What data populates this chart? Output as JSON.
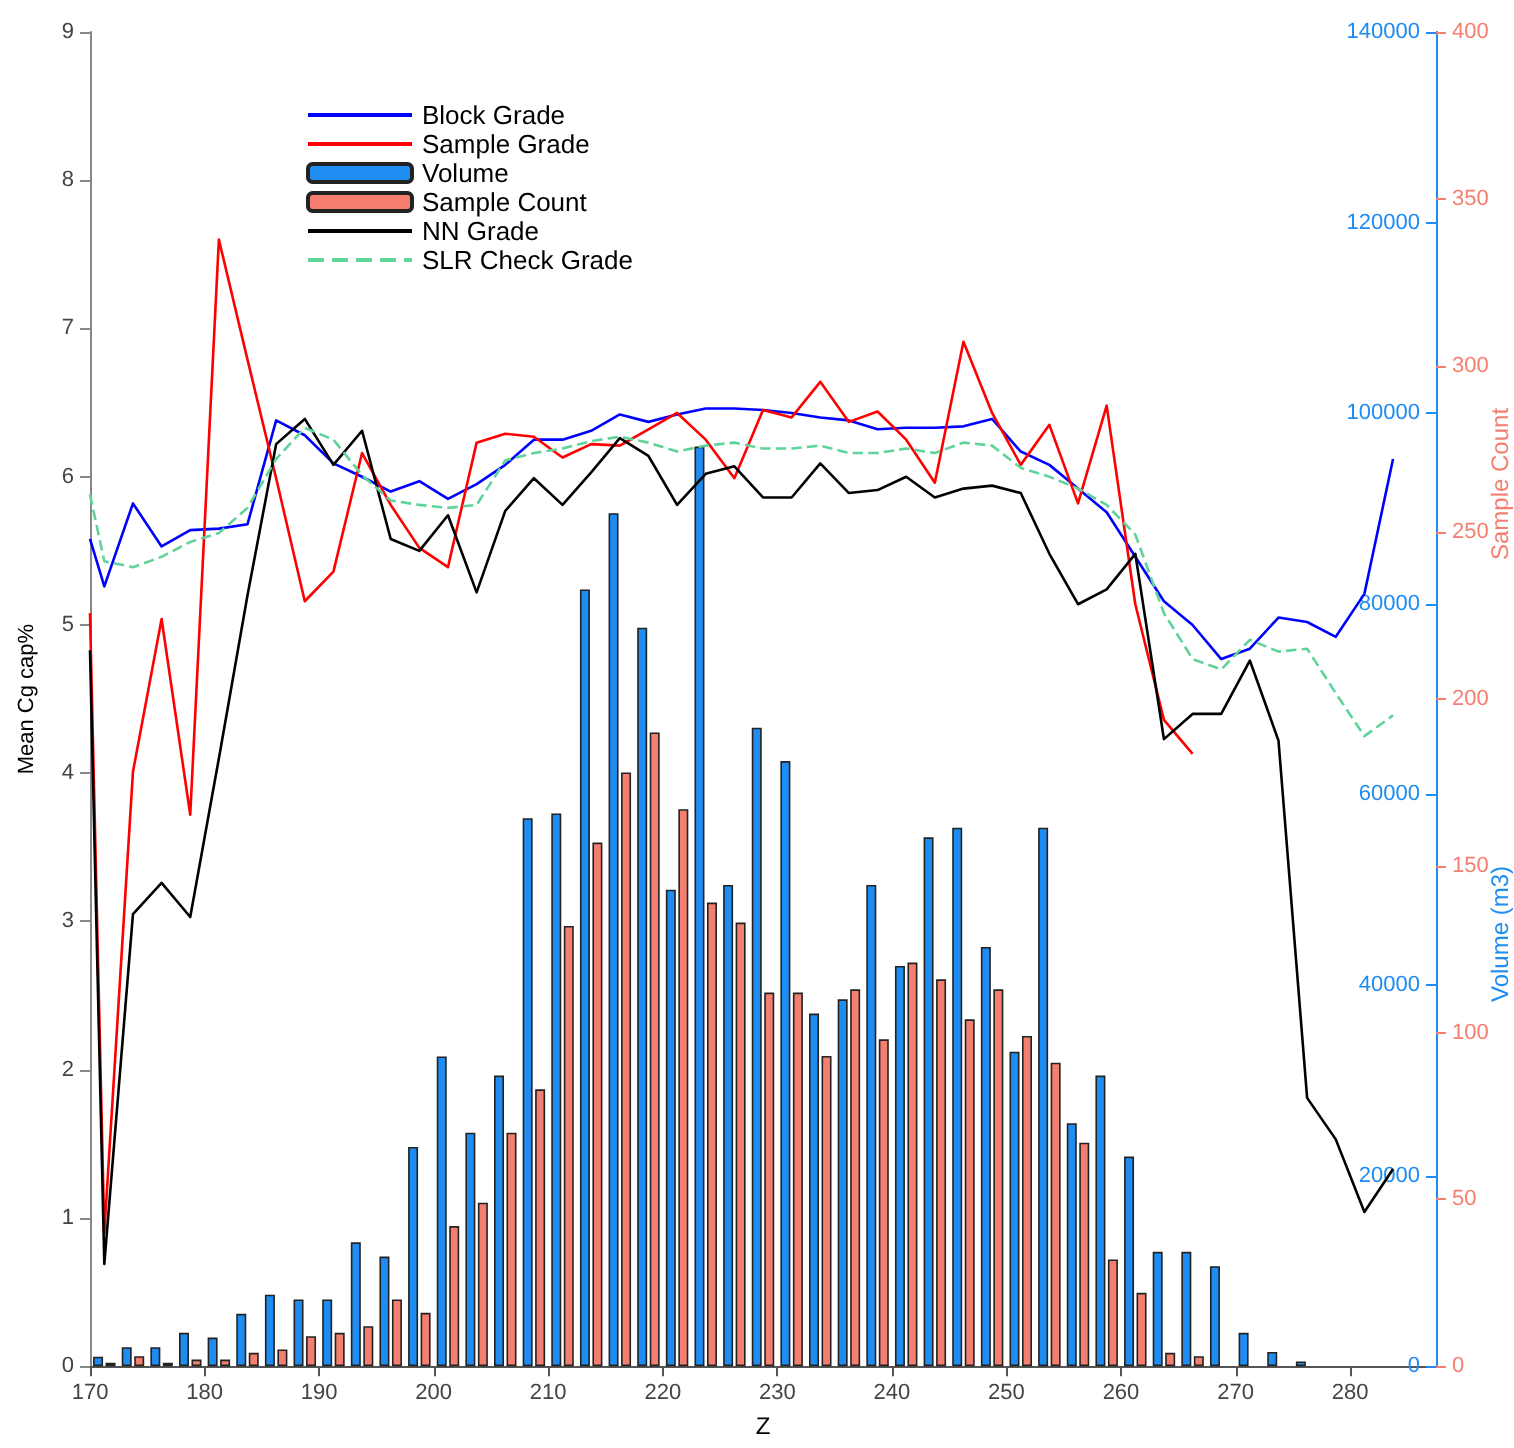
{
  "chart_data": {
    "type": "bar",
    "xlabel": "Z",
    "ylabel": "Mean Cg cap%",
    "y2label": "Sample Count",
    "y3label": "Volume (m3)",
    "x": [
      171.25,
      173.75,
      176.25,
      178.75,
      181.25,
      183.75,
      186.25,
      188.75,
      191.25,
      193.75,
      196.25,
      198.75,
      201.25,
      203.75,
      206.25,
      208.75,
      211.25,
      213.75,
      216.25,
      218.75,
      221.25,
      223.75,
      226.25,
      228.75,
      231.25,
      233.75,
      236.25,
      238.75,
      241.25,
      243.75,
      246.25,
      248.75,
      251.25,
      253.75,
      256.25,
      258.75,
      261.25,
      263.75,
      266.25,
      268.75,
      271.25,
      273.75,
      276.25,
      278.75,
      281.25,
      283.75
    ],
    "series": [
      {
        "name": "Block Grade",
        "type": "line",
        "color": "#0000ff",
        "x": [
          170,
          171.25,
          173.75,
          176.25,
          178.75,
          181.25,
          183.75,
          186.25,
          188.75,
          191.25,
          193.75,
          196.25,
          198.75,
          201.25,
          203.75,
          206.25,
          208.75,
          211.25,
          213.75,
          216.25,
          218.75,
          221.25,
          223.75,
          226.25,
          228.75,
          231.25,
          233.75,
          236.25,
          238.75,
          241.25,
          243.75,
          246.25,
          248.75,
          251.25,
          253.75,
          256.25,
          258.75,
          261.25,
          263.75,
          266.25,
          268.75,
          271.25,
          273.75,
          276.25,
          278.75,
          281.25,
          283.75
        ],
        "values": [
          5.58,
          5.26,
          5.82,
          5.53,
          5.64,
          5.65,
          5.68,
          6.38,
          6.28,
          6.09,
          6.0,
          5.9,
          5.97,
          5.85,
          5.95,
          6.08,
          6.25,
          6.25,
          6.31,
          6.42,
          6.37,
          6.42,
          6.46,
          6.46,
          6.45,
          6.43,
          6.4,
          6.38,
          6.32,
          6.33,
          6.33,
          6.34,
          6.39,
          6.17,
          6.08,
          5.92,
          5.76,
          5.46,
          5.16,
          5.0,
          4.77,
          4.84,
          5.05,
          5.02,
          4.92,
          5.21,
          6.12
        ]
      },
      {
        "name": "Sample Grade",
        "type": "line",
        "color": "#ff0000",
        "x": [
          170,
          171.25,
          173.75,
          176.25,
          178.75,
          181.25,
          183.75,
          186.25,
          188.75,
          191.25,
          193.75,
          196.25,
          198.75,
          201.25,
          203.75,
          206.25,
          208.75,
          211.25,
          213.75,
          216.25,
          218.75,
          221.25,
          223.75,
          226.25,
          228.75,
          231.25,
          233.75,
          236.25,
          238.75,
          241.25,
          243.75,
          246.25,
          248.75,
          251.25,
          253.75,
          256.25,
          258.75,
          261.25,
          263.75,
          266.25
        ],
        "values": [
          5.08,
          0.9,
          4.01,
          5.04,
          3.72,
          7.6,
          6.79,
          5.99,
          5.16,
          5.36,
          6.16,
          5.81,
          5.52,
          5.39,
          6.23,
          6.29,
          6.27,
          6.13,
          6.22,
          6.21,
          6.32,
          6.43,
          6.25,
          5.99,
          6.45,
          6.4,
          6.64,
          6.37,
          6.44,
          6.25,
          5.96,
          6.91,
          6.43,
          6.08,
          6.35,
          5.82,
          6.48,
          5.14,
          4.36,
          4.13
        ]
      },
      {
        "name": "Volume",
        "axis": "y3",
        "color": "#1e8cf0",
        "values": [
          1000,
          2000,
          2000,
          3500,
          3000,
          5500,
          7500,
          7000,
          7000,
          13000,
          11500,
          23000,
          32500,
          24500,
          30500,
          57500,
          58000,
          81500,
          89500,
          77500,
          50000,
          96500,
          50500,
          67000,
          63500,
          37000,
          38500,
          50500,
          42000,
          55500,
          56500,
          44000,
          33000,
          56500,
          25500,
          30500,
          22000,
          12000,
          12000,
          10500,
          3500,
          1500,
          500,
          null,
          null,
          null
        ]
      },
      {
        "name": "Sample Count",
        "axis": "y2",
        "color": "#f47f70",
        "values": [
          1,
          3,
          1,
          2,
          2,
          4,
          5,
          9,
          10,
          12,
          20,
          16,
          42,
          49,
          70,
          83,
          132,
          157,
          178,
          190,
          167,
          139,
          133,
          112,
          112,
          93,
          113,
          98,
          121,
          116,
          104,
          113,
          99,
          91,
          67,
          32,
          22,
          4,
          3,
          0,
          0,
          0,
          0,
          0,
          0,
          0
        ]
      },
      {
        "name": "NN Grade",
        "type": "line",
        "color": "#000000",
        "x": [
          170,
          171.25,
          173.75,
          176.25,
          178.75,
          181.25,
          183.75,
          186.25,
          188.75,
          191.25,
          193.75,
          196.25,
          198.75,
          201.25,
          203.75,
          206.25,
          208.75,
          211.25,
          213.75,
          216.25,
          218.75,
          221.25,
          223.75,
          226.25,
          228.75,
          231.25,
          233.75,
          236.25,
          238.75,
          241.25,
          243.75,
          246.25,
          248.75,
          251.25,
          253.75,
          256.25,
          258.75,
          261.25,
          263.75,
          266.25,
          268.75,
          271.25,
          273.75,
          276.25,
          278.75,
          281.25,
          283.75
        ],
        "values": [
          4.83,
          0.69,
          3.05,
          3.26,
          3.03,
          4.1,
          5.2,
          6.22,
          6.39,
          6.08,
          6.31,
          5.58,
          5.5,
          5.74,
          5.22,
          5.77,
          5.99,
          5.81,
          6.03,
          6.26,
          6.14,
          5.81,
          6.02,
          6.07,
          5.86,
          5.86,
          6.09,
          5.89,
          5.91,
          6.0,
          5.86,
          5.92,
          5.94,
          5.89,
          5.48,
          5.14,
          5.24,
          5.48,
          4.23,
          4.4,
          4.4,
          4.76,
          4.22,
          1.81,
          1.53,
          1.04,
          1.33
        ]
      },
      {
        "name": "SLR Check Grade",
        "type": "line",
        "line_style": "dashed",
        "color": "#5fd39a",
        "x": [
          170,
          171.25,
          173.75,
          176.25,
          178.75,
          181.25,
          183.75,
          186.25,
          188.75,
          191.25,
          193.75,
          196.25,
          198.75,
          201.25,
          203.75,
          206.25,
          208.75,
          211.25,
          213.75,
          216.25,
          218.75,
          221.25,
          223.75,
          226.25,
          228.75,
          231.25,
          233.75,
          236.25,
          238.75,
          241.25,
          243.75,
          246.25,
          248.75,
          251.25,
          253.75,
          256.25,
          258.75,
          261.25,
          263.75,
          266.25,
          268.75,
          271.25,
          273.75,
          276.25,
          278.75,
          281.25,
          283.75
        ],
        "values": [
          5.88,
          5.43,
          5.39,
          5.46,
          5.56,
          5.62,
          5.79,
          6.12,
          6.33,
          6.25,
          6.01,
          5.84,
          5.81,
          5.79,
          5.81,
          6.11,
          6.16,
          6.19,
          6.24,
          6.27,
          6.23,
          6.17,
          6.21,
          6.23,
          6.19,
          6.19,
          6.21,
          6.16,
          6.16,
          6.19,
          6.16,
          6.23,
          6.21,
          6.06,
          6.0,
          5.92,
          5.81,
          5.61,
          5.08,
          4.77,
          4.7,
          4.9,
          4.82,
          4.84,
          4.54,
          4.25,
          4.39
        ]
      }
    ],
    "xlim": [
      170,
      287.5
    ],
    "xticks": [
      170,
      180,
      190,
      200,
      210,
      220,
      230,
      240,
      250,
      260,
      270,
      280
    ],
    "ylim": [
      0,
      9
    ],
    "yticks": [
      0,
      1,
      2,
      3,
      4,
      5,
      6,
      7,
      8,
      9
    ],
    "y2lim": [
      0,
      400
    ],
    "y2ticks": [
      0,
      50,
      100,
      150,
      200,
      250,
      300,
      350,
      400
    ],
    "y3lim": [
      0,
      140000
    ],
    "y3ticks": [
      0,
      20000,
      40000,
      60000,
      80000,
      100000,
      120000,
      140000
    ],
    "legend": "top left",
    "marker": "none",
    "grid": false
  }
}
